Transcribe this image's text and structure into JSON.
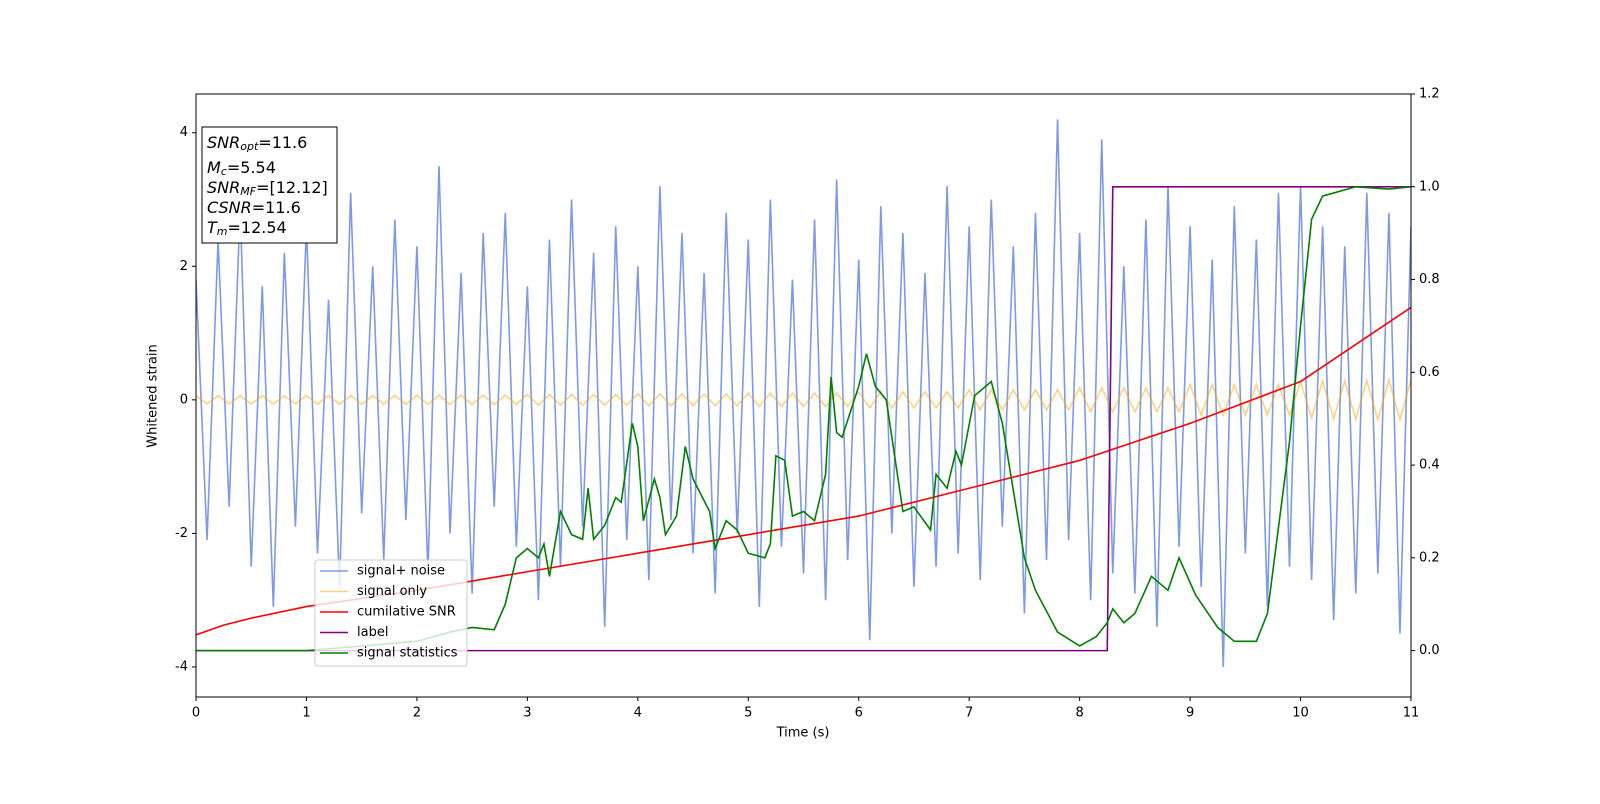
{
  "chart_data": {
    "type": "line",
    "xlabel": "Time (s)",
    "ylabel": "Whitened strain",
    "xlim": [
      0,
      11
    ],
    "xticks": [
      0,
      1,
      2,
      3,
      4,
      5,
      6,
      7,
      8,
      9,
      10,
      11
    ],
    "ylim": [
      -4.45,
      4.58
    ],
    "yticks": [
      -4,
      -2,
      0,
      2,
      4
    ],
    "y2lim": [
      -0.1,
      1.2
    ],
    "y2ticks": [
      {
        "value": 0,
        "label": "0.0"
      },
      0.2,
      0.4,
      0.6,
      0.8,
      {
        "value": 1,
        "label": "1.0"
      },
      1.2
    ],
    "annotations": [
      {
        "main": "SNR",
        "sub": "opt",
        "text": "=11.6"
      },
      {
        "main": "M",
        "sub": "c",
        "text": "=5.54"
      },
      {
        "main": "SNR",
        "sub": "MF",
        "text": "=[12.12]"
      },
      {
        "main": "CSNR",
        "sub": "",
        "text": "=11.6"
      },
      {
        "main": "T",
        "sub": "m",
        "text": "=12.54"
      }
    ],
    "x": [
      0,
      0.1,
      0.2,
      0.3,
      0.4,
      0.5,
      0.6,
      0.7,
      0.8,
      0.9,
      1,
      1.1,
      1.2,
      1.3,
      1.4,
      1.5,
      1.6,
      1.7,
      1.8,
      1.9,
      2,
      2.1,
      2.2,
      2.3,
      2.4,
      2.5,
      2.6,
      2.7,
      2.8,
      2.9,
      3,
      3.1,
      3.2,
      3.3,
      3.4,
      3.5,
      3.6,
      3.7,
      3.8,
      3.9,
      4,
      4.1,
      4.2,
      4.3,
      4.4,
      4.5,
      4.6,
      4.7,
      4.8,
      4.9,
      5,
      5.1,
      5.2,
      5.3,
      5.4,
      5.5,
      5.6,
      5.7,
      5.8,
      5.9,
      6,
      6.1,
      6.2,
      6.3,
      6.4,
      6.5,
      6.6,
      6.7,
      6.8,
      6.9,
      7,
      7.1,
      7.2,
      7.3,
      7.4,
      7.5,
      7.6,
      7.7,
      7.8,
      7.9,
      8,
      8.1,
      8.2,
      8.3,
      8.4,
      8.5,
      8.6,
      8.7,
      8.8,
      8.9,
      9,
      9.1,
      9.2,
      9.3,
      9.4,
      9.5,
      9.6,
      9.7,
      9.8,
      9.9,
      10,
      10.1,
      10.2,
      10.3,
      10.4,
      10.5,
      10.6,
      10.7,
      10.8,
      10.9,
      11
    ],
    "series": [
      {
        "name": "signal+ noise",
        "color": "#6f8fe6",
        "opacity": 0.9,
        "values": [
          1.8,
          -2.1,
          2.4,
          -1.6,
          2.9,
          -2.5,
          1.7,
          -3.1,
          2.2,
          -1.9,
          2.6,
          -2.3,
          1.5,
          -2.8,
          3.1,
          -1.7,
          2.0,
          -2.4,
          2.7,
          -1.8,
          2.3,
          -2.6,
          3.5,
          -2.0,
          1.9,
          -2.9,
          2.5,
          -1.6,
          2.8,
          -2.2,
          1.7,
          -3.0,
          2.4,
          -2.5,
          3.0,
          -1.9,
          2.2,
          -3.4,
          2.6,
          -2.1,
          2.0,
          -2.7,
          3.2,
          -1.8,
          2.5,
          -2.3,
          1.9,
          -2.9,
          2.8,
          -2.0,
          2.4,
          -3.1,
          3.0,
          -2.2,
          1.8,
          -2.6,
          2.7,
          -3.0,
          3.3,
          -2.4,
          2.1,
          -3.6,
          2.9,
          -2.0,
          2.5,
          -2.8,
          1.9,
          -2.5,
          3.2,
          -2.3,
          2.6,
          -2.7,
          3.0,
          -1.9,
          2.3,
          -3.2,
          2.8,
          -2.4,
          4.2,
          -2.1,
          2.5,
          -3.0,
          3.9,
          -2.6,
          2.0,
          -2.9,
          2.7,
          -3.4,
          3.2,
          -2.2,
          2.6,
          -2.8,
          2.1,
          -4.0,
          2.9,
          -2.3,
          2.4,
          -3.1,
          3.1,
          -2.5,
          3.2,
          -2.7,
          2.6,
          -3.3,
          2.3,
          -2.9,
          3.1,
          -2.6,
          2.8,
          -3.5,
          2.6
        ]
      },
      {
        "name": "signal only",
        "color": "orange",
        "opacity": 0.5,
        "values": [
          0.06,
          -0.06,
          0.06,
          -0.06,
          0.06,
          -0.06,
          0.06,
          -0.06,
          0.06,
          -0.06,
          0.065,
          -0.065,
          0.065,
          -0.065,
          0.065,
          -0.065,
          0.065,
          -0.065,
          0.065,
          -0.065,
          0.07,
          -0.07,
          0.07,
          -0.07,
          0.07,
          -0.07,
          0.07,
          -0.07,
          0.07,
          -0.07,
          0.08,
          -0.08,
          0.08,
          -0.08,
          0.08,
          -0.08,
          0.08,
          -0.08,
          0.08,
          -0.08,
          0.09,
          -0.09,
          0.09,
          -0.09,
          0.09,
          -0.09,
          0.09,
          -0.09,
          0.09,
          -0.09,
          0.1,
          -0.1,
          0.1,
          -0.1,
          0.1,
          -0.1,
          0.1,
          -0.1,
          0.1,
          -0.1,
          0.12,
          -0.12,
          0.12,
          -0.12,
          0.12,
          -0.12,
          0.12,
          -0.12,
          0.12,
          -0.12,
          0.15,
          -0.15,
          0.15,
          -0.15,
          0.15,
          -0.15,
          0.15,
          -0.15,
          0.15,
          -0.15,
          0.18,
          -0.18,
          0.18,
          -0.18,
          0.18,
          -0.18,
          0.18,
          -0.18,
          0.18,
          -0.18,
          0.23,
          -0.23,
          0.23,
          -0.23,
          0.23,
          -0.23,
          0.23,
          -0.23,
          0.23,
          -0.23,
          0.27,
          -0.27,
          0.28,
          -0.28,
          0.28,
          -0.29,
          0.29,
          -0.3,
          0.3,
          -0.3,
          0.3
        ]
      },
      {
        "name": "cumilative SNR",
        "color": "red",
        "axis": "y2",
        "x": [
          0,
          0.25,
          0.5,
          1,
          2,
          3,
          4,
          5,
          6,
          7,
          8,
          9,
          10,
          11
        ],
        "values": [
          0.034,
          0.055,
          0.07,
          0.095,
          0.13,
          0.17,
          0.21,
          0.25,
          0.29,
          0.35,
          0.41,
          0.49,
          0.58,
          0.74
        ]
      },
      {
        "name": "label",
        "color": "purple",
        "axis": "y2",
        "x": [
          0,
          8.25,
          8.3,
          11
        ],
        "values": [
          0,
          0,
          1,
          1
        ]
      },
      {
        "name": "signal statistics",
        "color": "green",
        "axis": "y2",
        "x": [
          0,
          1,
          2,
          2.3,
          2.5,
          2.7,
          2.8,
          2.9,
          3.0,
          3.1,
          3.15,
          3.2,
          3.3,
          3.4,
          3.5,
          3.55,
          3.6,
          3.7,
          3.8,
          3.85,
          3.95,
          4.0,
          4.05,
          4.15,
          4.2,
          4.25,
          4.35,
          4.43,
          4.5,
          4.65,
          4.7,
          4.8,
          4.9,
          5.0,
          5.15,
          5.2,
          5.25,
          5.33,
          5.4,
          5.5,
          5.6,
          5.7,
          5.75,
          5.8,
          5.85,
          6.0,
          6.07,
          6.15,
          6.25,
          6.4,
          6.5,
          6.65,
          6.7,
          6.8,
          6.88,
          6.93,
          7.05,
          7.2,
          7.3,
          7.5,
          7.6,
          7.8,
          8.0,
          8.15,
          8.25,
          8.3,
          8.4,
          8.5,
          8.65,
          8.8,
          8.9,
          9.05,
          9.25,
          9.4,
          9.6,
          9.7,
          9.9,
          10.0,
          10.1,
          10.2,
          10.5,
          10.8,
          11
        ],
        "values": [
          0,
          0,
          0.02,
          0.04,
          0.05,
          0.045,
          0.1,
          0.2,
          0.22,
          0.2,
          0.23,
          0.16,
          0.3,
          0.25,
          0.24,
          0.35,
          0.24,
          0.27,
          0.33,
          0.32,
          0.49,
          0.44,
          0.28,
          0.37,
          0.33,
          0.25,
          0.29,
          0.44,
          0.37,
          0.3,
          0.22,
          0.28,
          0.26,
          0.21,
          0.2,
          0.23,
          0.42,
          0.41,
          0.29,
          0.3,
          0.28,
          0.38,
          0.59,
          0.47,
          0.46,
          0.57,
          0.64,
          0.57,
          0.54,
          0.3,
          0.31,
          0.26,
          0.38,
          0.35,
          0.43,
          0.4,
          0.55,
          0.58,
          0.49,
          0.2,
          0.13,
          0.04,
          0.01,
          0.03,
          0.06,
          0.09,
          0.06,
          0.08,
          0.16,
          0.13,
          0.2,
          0.12,
          0.05,
          0.02,
          0.02,
          0.08,
          0.45,
          0.7,
          0.93,
          0.98,
          1.0,
          0.995,
          1.0
        ]
      }
    ]
  }
}
